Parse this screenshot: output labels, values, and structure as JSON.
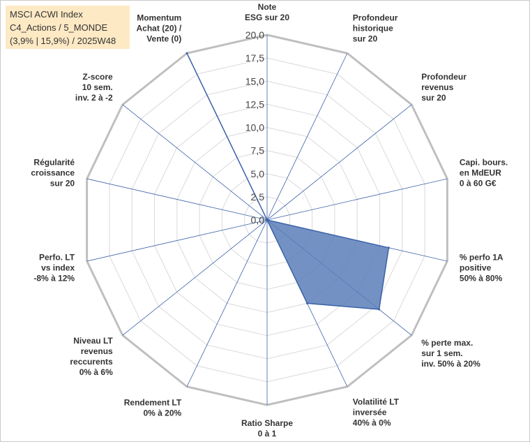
{
  "title_box": {
    "line1": "MSCI ACWI Index",
    "line2": "C4_Actions / 5_MONDE",
    "line3": "(3,9% | 15,9%) / 2025W48"
  },
  "colors": {
    "fill": "#5b7fb8",
    "line": "#3b62a8",
    "grid": "#d9d9d9",
    "outer": "#bfbfbf",
    "title_bg": "#fde9c4"
  },
  "chart_data": {
    "type": "radar",
    "title": "MSCI ACWI Index",
    "rmin": 0,
    "rmax": 20,
    "tick_labels": [
      "0,0",
      "2,5",
      "5,0",
      "7,5",
      "10,0",
      "12,5",
      "15,0",
      "17,5",
      "20,0"
    ],
    "axes": [
      {
        "label": [
          "Note",
          "ESG sur 20"
        ],
        "value": 0
      },
      {
        "label": [
          "Profondeur",
          "historique",
          "sur 20"
        ],
        "value": 0
      },
      {
        "label": [
          "Profondeur",
          "revenus",
          "sur 20"
        ],
        "value": 0
      },
      {
        "label": [
          "Capi. bours.",
          "en MdEUR",
          "0 à 60 G€"
        ],
        "value": 0
      },
      {
        "label": [
          "% perfo 1A",
          "positive",
          "50% à 80%"
        ],
        "value": 13.5
      },
      {
        "label": [
          "% perte max.",
          "sur 1 sem.",
          "inv. 50% à 20%"
        ],
        "value": 15.5
      },
      {
        "label": [
          "Volatilité LT",
          "inversée",
          "40% à 0%"
        ],
        "value": 10.0
      },
      {
        "label": [
          "Ratio Sharpe",
          "0 à 1"
        ],
        "value": 0
      },
      {
        "label": [
          "Rendement LT",
          "0% à 20%"
        ],
        "value": 0
      },
      {
        "label": [
          "Niveau LT",
          "revenus",
          "reccurents",
          "0% à 6%"
        ],
        "value": 0
      },
      {
        "label": [
          "Perfo. LT",
          "vs index",
          "-8% à 12%"
        ],
        "value": 0
      },
      {
        "label": [
          "Régularité",
          "croissance",
          "sur 20"
        ],
        "value": 0
      },
      {
        "label": [
          "Z-score",
          "10 sem.",
          "inv. 2 à -2"
        ],
        "value": 0
      },
      {
        "label": [
          "Momentum",
          "Achat (20) /",
          "Vente (0)"
        ],
        "value": 20
      }
    ]
  }
}
